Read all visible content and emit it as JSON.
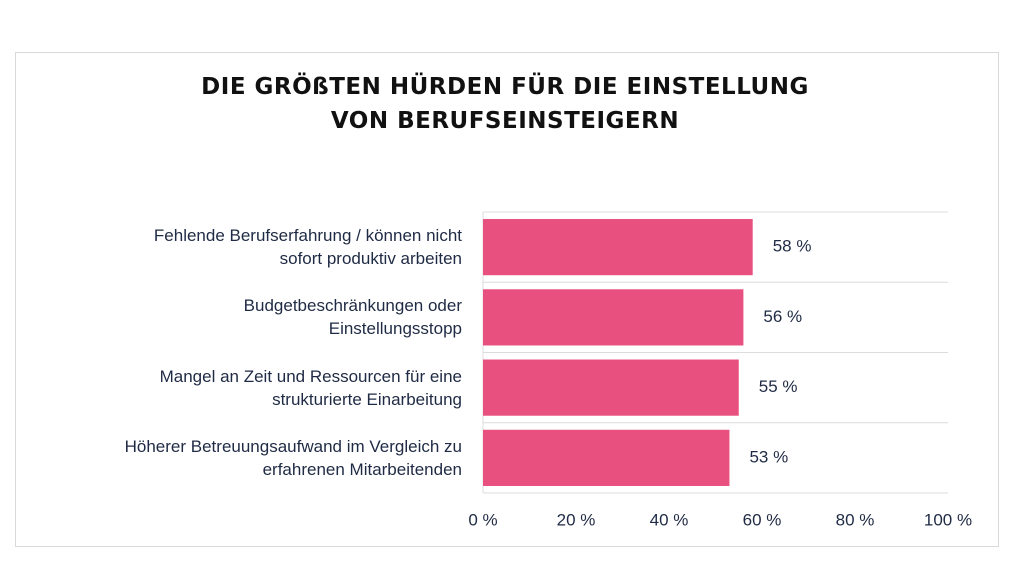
{
  "chart_data": {
    "type": "bar",
    "orientation": "horizontal",
    "title": "DIE GRÖßTEN HÜRDEN FÜR DIE EINSTELLUNG\nVON BERUFSEINSTEIGERN",
    "categories": [
      "Fehlende Berufserfahrung / können nicht\nsofort produktiv arbeiten",
      "Budgetbeschränkungen oder\nEinstellungsstopp",
      "Mangel an Zeit und Ressourcen für eine\nstrukturierte Einarbeitung",
      "Höherer Betreuungsaufwand im Vergleich zu\nerfahrenen Mitarbeitenden"
    ],
    "values": [
      58,
      56,
      55,
      53
    ],
    "value_labels": [
      "58 %",
      "56 %",
      "55 %",
      "53 %"
    ],
    "color": "#e8507f",
    "xlim": [
      0,
      100
    ],
    "xticks": [
      {
        "value": 0,
        "label": "0 %"
      },
      {
        "value": 20,
        "label": "20 %"
      },
      {
        "value": 40,
        "label": "40 %"
      },
      {
        "value": 60,
        "label": "60 %"
      },
      {
        "value": 80,
        "label": "80 %"
      },
      {
        "value": 100,
        "label": "100 %"
      }
    ],
    "grid": false
  }
}
